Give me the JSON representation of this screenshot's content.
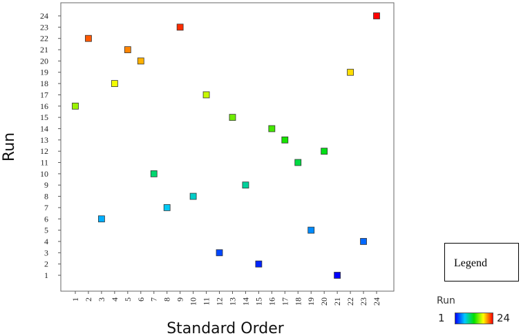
{
  "chart_data": {
    "type": "scatter",
    "xlabel": "Standard Order",
    "ylabel": "Run",
    "x_categories": [
      "1",
      "2",
      "3",
      "4",
      "5",
      "6",
      "7",
      "8",
      "9",
      "10",
      "11",
      "12",
      "13",
      "14",
      "15",
      "16",
      "17",
      "18",
      "19",
      "20",
      "21",
      "22",
      "23",
      "24"
    ],
    "y_ticks": [
      "1",
      "2",
      "3",
      "4",
      "5",
      "6",
      "7",
      "8",
      "9",
      "10",
      "11",
      "12",
      "13",
      "14",
      "15",
      "16",
      "17",
      "18",
      "19",
      "20",
      "21",
      "22",
      "23",
      "24"
    ],
    "xlim": [
      1,
      24
    ],
    "ylim": [
      1,
      24
    ],
    "points": [
      {
        "x": 1,
        "y": 16
      },
      {
        "x": 2,
        "y": 22
      },
      {
        "x": 3,
        "y": 6
      },
      {
        "x": 4,
        "y": 18
      },
      {
        "x": 5,
        "y": 21
      },
      {
        "x": 6,
        "y": 20
      },
      {
        "x": 7,
        "y": 10
      },
      {
        "x": 8,
        "y": 7
      },
      {
        "x": 9,
        "y": 23
      },
      {
        "x": 10,
        "y": 8
      },
      {
        "x": 11,
        "y": 17
      },
      {
        "x": 12,
        "y": 3
      },
      {
        "x": 13,
        "y": 15
      },
      {
        "x": 14,
        "y": 9
      },
      {
        "x": 15,
        "y": 2
      },
      {
        "x": 16,
        "y": 14
      },
      {
        "x": 17,
        "y": 13
      },
      {
        "x": 18,
        "y": 11
      },
      {
        "x": 19,
        "y": 5
      },
      {
        "x": 20,
        "y": 12
      },
      {
        "x": 21,
        "y": 1
      },
      {
        "x": 22,
        "y": 19
      },
      {
        "x": 23,
        "y": 4
      },
      {
        "x": 24,
        "y": 24
      }
    ],
    "color_scale": {
      "variable": "Run",
      "min_label": "1",
      "max_label": "24",
      "colors": [
        "#0000ff",
        "#00c8ff",
        "#00e000",
        "#ffff00",
        "#ff0000"
      ]
    },
    "legend": {
      "label": "Legend",
      "placement": "bottom-right"
    }
  }
}
